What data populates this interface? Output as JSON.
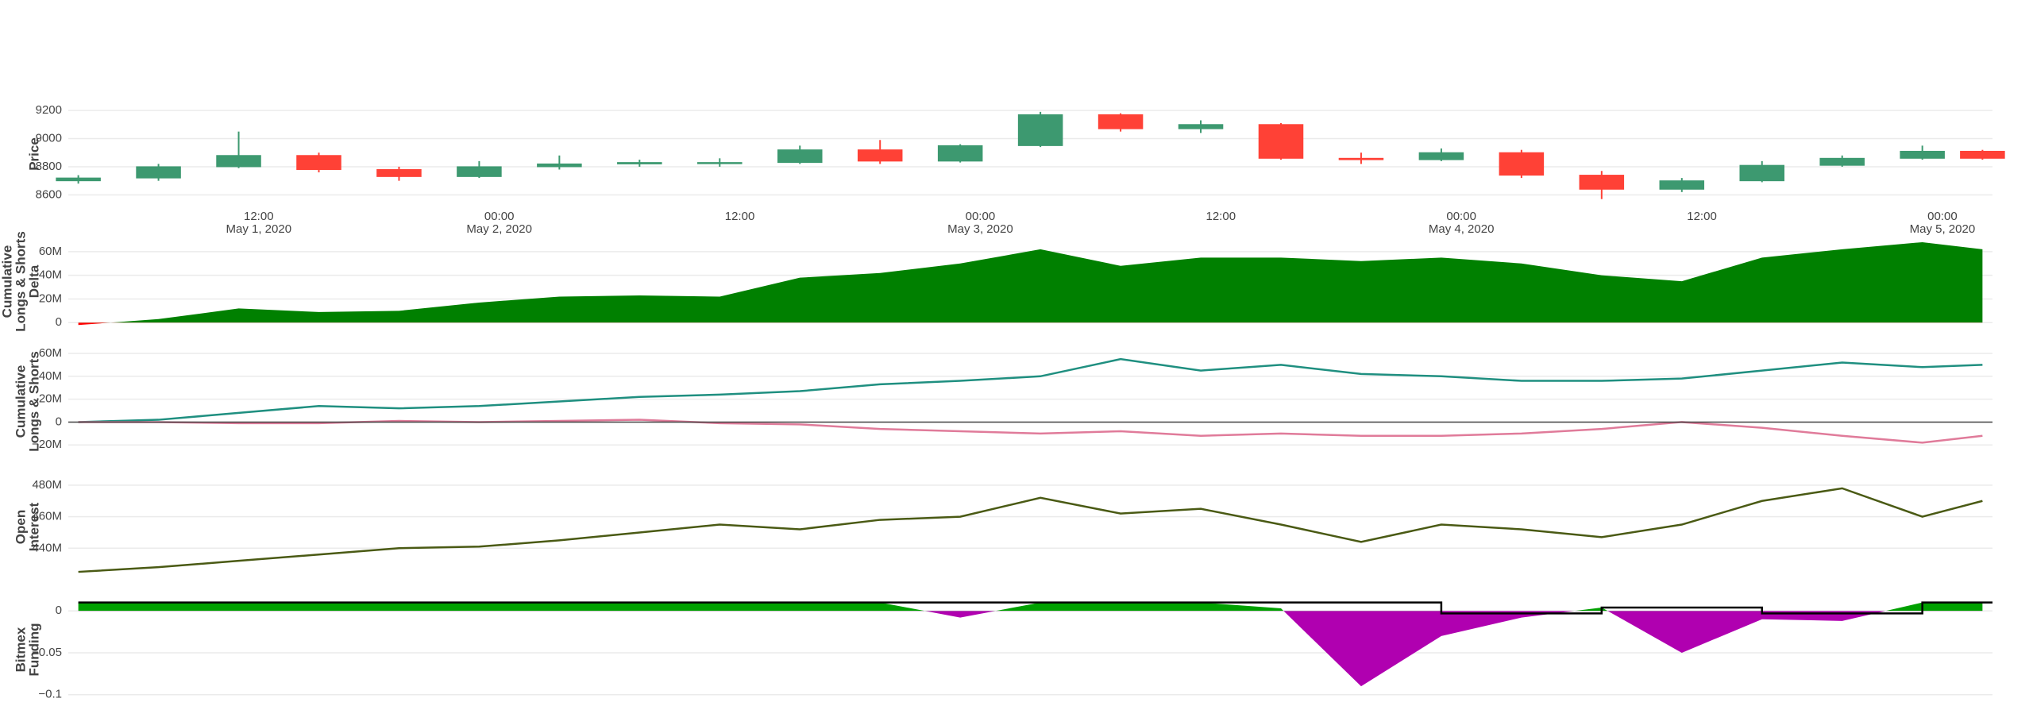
{
  "chart_data": [
    {
      "type": "candlestick",
      "ylabel": [
        "Price"
      ],
      "x": [
        "2020-05-01 03:00",
        "2020-05-01 07:00",
        "2020-05-01 11:00",
        "2020-05-01 15:00",
        "2020-05-01 19:00",
        "2020-05-01 23:00",
        "2020-05-02 03:00",
        "2020-05-02 07:00",
        "2020-05-02 11:00",
        "2020-05-02 15:00",
        "2020-05-02 19:00",
        "2020-05-02 23:00",
        "2020-05-03 03:00",
        "2020-05-03 07:00",
        "2020-05-03 11:00",
        "2020-05-03 15:00",
        "2020-05-03 19:00",
        "2020-05-03 23:00",
        "2020-05-04 03:00",
        "2020-05-04 07:00",
        "2020-05-04 11:00",
        "2020-05-04 15:00",
        "2020-05-04 19:00",
        "2020-05-04 23:00",
        "2020-05-05 02:00"
      ],
      "open": [
        8700,
        8720,
        8800,
        8880,
        8780,
        8730,
        8800,
        8820,
        8830,
        8830,
        8920,
        8840,
        8950,
        9170,
        9070,
        9100,
        8860,
        8850,
        8900,
        8740,
        8640,
        8700,
        8810,
        8860,
        8910
      ],
      "high": [
        8740,
        8820,
        9050,
        8900,
        8800,
        8840,
        8880,
        8850,
        8860,
        8950,
        8990,
        8960,
        9190,
        9180,
        9130,
        9110,
        8900,
        8930,
        8920,
        8770,
        8720,
        8840,
        8880,
        8950,
        8920
      ],
      "low": [
        8680,
        8700,
        8790,
        8760,
        8700,
        8720,
        8780,
        8800,
        8800,
        8820,
        8820,
        8830,
        8940,
        9050,
        9040,
        8850,
        8820,
        8840,
        8720,
        8570,
        8620,
        8690,
        8800,
        8850,
        8850
      ],
      "close": [
        8720,
        8800,
        8880,
        8780,
        8730,
        8800,
        8820,
        8830,
        8830,
        8920,
        8840,
        8950,
        9170,
        9070,
        9100,
        8860,
        8850,
        8900,
        8740,
        8640,
        8700,
        8810,
        8860,
        8910,
        8860
      ],
      "increasing_color": "#3d9970",
      "decreasing_color": "#ff4136",
      "xlim": [
        "2020-05-01 02:30",
        "2020-05-05 02:30"
      ],
      "xticks": [
        {
          "value": "2020-05-01 12:00",
          "label": [
            "12:00",
            "May 1, 2020"
          ]
        },
        {
          "value": "2020-05-02 00:00",
          "label": [
            "00:00",
            "May 2, 2020"
          ]
        },
        {
          "value": "2020-05-02 12:00",
          "label": [
            "12:00"
          ]
        },
        {
          "value": "2020-05-03 00:00",
          "label": [
            "00:00",
            "May 3, 2020"
          ]
        },
        {
          "value": "2020-05-03 12:00",
          "label": [
            "12:00"
          ]
        },
        {
          "value": "2020-05-04 00:00",
          "label": [
            "00:00",
            "May 4, 2020"
          ]
        },
        {
          "value": "2020-05-04 12:00",
          "label": [
            "12:00"
          ]
        },
        {
          "value": "2020-05-05 00:00",
          "label": [
            "00:00",
            "May 5, 2020"
          ]
        }
      ],
      "ylim": [
        8540,
        9240
      ],
      "yticks": [
        8600,
        8800,
        9000,
        9200
      ],
      "grid": true
    },
    {
      "type": "area",
      "ylabel": [
        "Cumulative",
        "Longs & Shorts",
        "Delta"
      ],
      "x": [
        "2020-05-01 03:00",
        "2020-05-01 07:00",
        "2020-05-01 11:00",
        "2020-05-01 15:00",
        "2020-05-01 19:00",
        "2020-05-01 23:00",
        "2020-05-02 03:00",
        "2020-05-02 07:00",
        "2020-05-02 11:00",
        "2020-05-02 15:00",
        "2020-05-02 19:00",
        "2020-05-02 23:00",
        "2020-05-03 03:00",
        "2020-05-03 07:00",
        "2020-05-03 11:00",
        "2020-05-03 15:00",
        "2020-05-03 19:00",
        "2020-05-03 23:00",
        "2020-05-04 03:00",
        "2020-05-04 07:00",
        "2020-05-04 11:00",
        "2020-05-04 15:00",
        "2020-05-04 19:00",
        "2020-05-04 23:00",
        "2020-05-05 02:00"
      ],
      "series": [
        {
          "color": "#008000",
          "negative_color": "#ff0000",
          "fill": true,
          "values": [
            -2000000,
            3000000,
            12000000,
            9000000,
            10000000,
            17000000,
            22000000,
            23000000,
            22000000,
            38000000,
            42000000,
            50000000,
            62000000,
            48000000,
            55000000,
            55000000,
            52000000,
            55000000,
            50000000,
            40000000,
            35000000,
            55000000,
            62000000,
            68000000,
            62000000
          ]
        }
      ],
      "xlim": [
        "2020-05-01 02:30",
        "2020-05-05 02:30"
      ],
      "ylim": [
        -2500000,
        72000000
      ],
      "yticks": [
        0,
        {
          "value": 20000000,
          "label": "20M"
        },
        {
          "value": 40000000,
          "label": "40M"
        },
        {
          "value": 60000000,
          "label": "60M"
        }
      ],
      "grid": true
    },
    {
      "type": "line",
      "ylabel": [
        "Cumulative",
        "Longs & Shorts"
      ],
      "x": [
        "2020-05-01 03:00",
        "2020-05-01 07:00",
        "2020-05-01 11:00",
        "2020-05-01 15:00",
        "2020-05-01 19:00",
        "2020-05-01 23:00",
        "2020-05-02 03:00",
        "2020-05-02 07:00",
        "2020-05-02 11:00",
        "2020-05-02 15:00",
        "2020-05-02 19:00",
        "2020-05-02 23:00",
        "2020-05-03 03:00",
        "2020-05-03 07:00",
        "2020-05-03 11:00",
        "2020-05-03 15:00",
        "2020-05-03 19:00",
        "2020-05-03 23:00",
        "2020-05-04 03:00",
        "2020-05-04 07:00",
        "2020-05-04 11:00",
        "2020-05-04 15:00",
        "2020-05-04 19:00",
        "2020-05-04 23:00",
        "2020-05-05 02:00"
      ],
      "series": [
        {
          "color": "#1f8f80",
          "values": [
            0,
            2000000,
            8000000,
            14000000,
            12000000,
            14000000,
            18000000,
            22000000,
            24000000,
            27000000,
            33000000,
            36000000,
            40000000,
            55000000,
            45000000,
            50000000,
            42000000,
            40000000,
            36000000,
            36000000,
            38000000,
            45000000,
            52000000,
            48000000,
            50000000
          ]
        },
        {
          "color": "#e07b9a",
          "values": [
            0,
            0,
            -1000000,
            -1000000,
            1000000,
            0,
            1000000,
            2000000,
            -1000000,
            -2000000,
            -6000000,
            -8000000,
            -10000000,
            -8000000,
            -12000000,
            -10000000,
            -12000000,
            -12000000,
            -10000000,
            -6000000,
            0,
            -5000000,
            -12000000,
            -18000000,
            -12000000
          ]
        }
      ],
      "xlim": [
        "2020-05-01 02:30",
        "2020-05-05 02:30"
      ],
      "ylim": [
        -33000000,
        69000000
      ],
      "yticks": [
        {
          "value": -20000000,
          "label": "−20M"
        },
        0,
        {
          "value": 20000000,
          "label": "20M"
        },
        {
          "value": 40000000,
          "label": "40M"
        },
        {
          "value": 60000000,
          "label": "60M"
        }
      ],
      "grid": true,
      "zeroline": true
    },
    {
      "type": "line",
      "ylabel": [
        "Open",
        "Interest"
      ],
      "x": [
        "2020-05-01 03:00",
        "2020-05-01 07:00",
        "2020-05-01 11:00",
        "2020-05-01 15:00",
        "2020-05-01 19:00",
        "2020-05-01 23:00",
        "2020-05-02 03:00",
        "2020-05-02 07:00",
        "2020-05-02 11:00",
        "2020-05-02 15:00",
        "2020-05-02 19:00",
        "2020-05-02 23:00",
        "2020-05-03 03:00",
        "2020-05-03 07:00",
        "2020-05-03 11:00",
        "2020-05-03 15:00",
        "2020-05-03 19:00",
        "2020-05-03 23:00",
        "2020-05-04 03:00",
        "2020-05-04 07:00",
        "2020-05-04 11:00",
        "2020-05-04 15:00",
        "2020-05-04 19:00",
        "2020-05-04 23:00",
        "2020-05-05 02:00"
      ],
      "series": [
        {
          "color": "#4a5a14",
          "values": [
            425000000,
            428000000,
            432000000,
            436000000,
            440000000,
            441000000,
            445000000,
            450000000,
            455000000,
            452000000,
            458000000,
            460000000,
            472000000,
            462000000,
            465000000,
            455000000,
            444000000,
            455000000,
            452000000,
            447000000,
            455000000,
            470000000,
            478000000,
            460000000,
            470000000
          ]
        }
      ],
      "xlim": [
        "2020-05-01 02:30",
        "2020-05-05 02:30"
      ],
      "ylim": [
        421000000,
        486000000
      ],
      "yticks": [
        {
          "value": 440000000,
          "label": "440M"
        },
        {
          "value": 460000000,
          "label": "460M"
        },
        {
          "value": 480000000,
          "label": "480M"
        }
      ],
      "grid": true
    },
    {
      "type": "area",
      "ylabel": [
        "Bitmex",
        "Funding"
      ],
      "x": [
        "2020-05-01 03:00",
        "2020-05-01 07:00",
        "2020-05-01 11:00",
        "2020-05-01 15:00",
        "2020-05-01 19:00",
        "2020-05-01 23:00",
        "2020-05-02 03:00",
        "2020-05-02 07:00",
        "2020-05-02 11:00",
        "2020-05-02 15:00",
        "2020-05-02 19:00",
        "2020-05-02 23:00",
        "2020-05-03 03:00",
        "2020-05-03 07:00",
        "2020-05-03 11:00",
        "2020-05-03 15:00",
        "2020-05-03 19:00",
        "2020-05-03 23:00",
        "2020-05-04 03:00",
        "2020-05-04 07:00",
        "2020-05-04 11:00",
        "2020-05-04 15:00",
        "2020-05-04 19:00",
        "2020-05-04 23:00",
        "2020-05-05 02:00"
      ],
      "series": [
        {
          "color": "#00a000",
          "negative_color": "#b000b0",
          "fill": true,
          "values": [
            0.01,
            0.01,
            0.01,
            0.01,
            0.01,
            0.01,
            0.01,
            0.01,
            0.01,
            0.01,
            0.01,
            -0.008,
            0.01,
            0.01,
            0.01,
            0.003,
            -0.09,
            -0.03,
            -0.008,
            0.004,
            -0.05,
            -0.01,
            -0.012,
            0.01,
            0.01
          ]
        },
        {
          "color": "#000000",
          "shape": "step",
          "values": [
            0.01,
            0.01,
            0.01,
            0.01,
            0.01,
            0.01,
            0.01,
            0.01,
            0.01,
            0.01,
            0.01,
            0.01,
            0.01,
            0.01,
            0.01,
            0.01,
            0.01,
            -0.003,
            -0.003,
            0.004,
            0.004,
            -0.003,
            -0.003,
            0.01,
            0.01
          ]
        }
      ],
      "xlim": [
        "2020-05-01 02:30",
        "2020-05-05 02:30"
      ],
      "ylim": [
        -0.105,
        0.0125
      ],
      "yticks": [
        {
          "value": -0.1,
          "label": "−0.1"
        },
        {
          "value": -0.05,
          "label": "−0.05"
        },
        0
      ],
      "grid": true
    }
  ]
}
